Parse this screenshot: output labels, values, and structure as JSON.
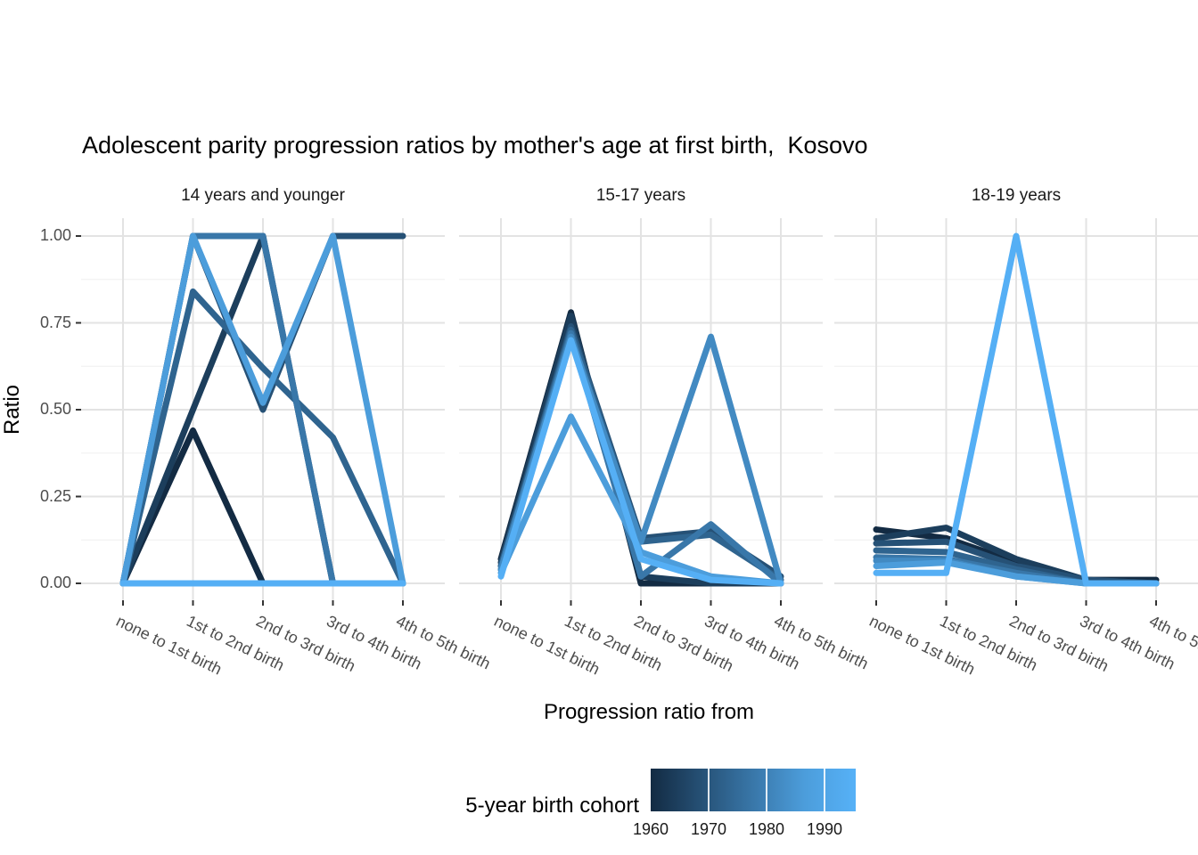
{
  "chart_data": {
    "type": "line",
    "title": "Adolescent parity progression ratios by mother's age at first birth,  Kosovo",
    "xlabel": "Progression ratio from",
    "ylabel": "Ratio",
    "ylim": [
      0,
      1
    ],
    "grid": "on",
    "y_ticks": [
      {
        "label": "0.00",
        "value": 0.0
      },
      {
        "label": "0.25",
        "value": 0.25
      },
      {
        "label": "0.50",
        "value": 0.5
      },
      {
        "label": "0.75",
        "value": 0.75
      },
      {
        "label": "1.00",
        "value": 1.0
      }
    ],
    "categories": [
      "none to 1st birth",
      "1st to 2nd birth",
      "2nd to 3rd birth",
      "3rd to 4th birth",
      "4th to 5th birth"
    ],
    "legend": {
      "title": "5-year birth cohort",
      "position": "bottom",
      "gradient_low": "#132B43",
      "gradient_high": "#56B1F7",
      "gradient_stops": [
        "#132B43",
        "#265176",
        "#3977A9",
        "#4C9DDB",
        "#56B1F7"
      ],
      "ticks": [
        {
          "label": "1960",
          "year": 1960
        },
        {
          "label": "1970",
          "year": 1970
        },
        {
          "label": "1980",
          "year": 1980
        },
        {
          "label": "1990",
          "year": 1990
        }
      ]
    },
    "facets": [
      {
        "label": "14 years and younger",
        "series": [
          {
            "cohort": 1960,
            "color": "#132B43",
            "values": [
              0,
              0.44,
              0,
              0,
              0
            ]
          },
          {
            "cohort": 1965,
            "color": "#1C3E5C",
            "values": [
              0,
              0.5,
              1.0,
              0,
              0
            ]
          },
          {
            "cohort": 1970,
            "color": "#265176",
            "values": [
              0,
              1.0,
              0.5,
              1.0,
              1.0
            ]
          },
          {
            "cohort": 1975,
            "color": "#2F648F",
            "values": [
              0,
              0.84,
              0.62,
              0.42,
              0
            ]
          },
          {
            "cohort": 1980,
            "color": "#3977A9",
            "values": [
              0,
              1.0,
              1.0,
              0,
              0
            ]
          },
          {
            "cohort": 1985,
            "color": "#428AC2",
            "values": [
              0,
              0,
              0,
              0,
              0
            ]
          },
          {
            "cohort": 1990,
            "color": "#4C9DDB",
            "values": [
              0,
              1.0,
              0.52,
              1.0,
              0
            ]
          },
          {
            "cohort": 1995,
            "color": "#55AFF5",
            "values": [
              0,
              0,
              0,
              0,
              0
            ]
          }
        ]
      },
      {
        "label": "15-17 years",
        "series": [
          {
            "cohort": 1960,
            "color": "#132B43",
            "values": [
              0.07,
              0.78,
              0,
              0,
              0
            ]
          },
          {
            "cohort": 1965,
            "color": "#1C3E5C",
            "values": [
              0.06,
              0.77,
              0.02,
              0,
              0
            ]
          },
          {
            "cohort": 1970,
            "color": "#265176",
            "values": [
              0.05,
              0.74,
              0.13,
              0.15,
              0.02
            ]
          },
          {
            "cohort": 1975,
            "color": "#2F648F",
            "values": [
              0.05,
              0.73,
              0.12,
              0.14,
              0.01
            ]
          },
          {
            "cohort": 1980,
            "color": "#3977A9",
            "values": [
              0.04,
              0.72,
              0.02,
              0.17,
              0
            ]
          },
          {
            "cohort": 1985,
            "color": "#428AC2",
            "values": [
              0.04,
              0.71,
              0.12,
              0.71,
              0
            ]
          },
          {
            "cohort": 1990,
            "color": "#4C9DDB",
            "values": [
              0.03,
              0.48,
              0.09,
              0.02,
              0
            ]
          },
          {
            "cohort": 1995,
            "color": "#55AFF5",
            "values": [
              0.02,
              0.7,
              0.07,
              0.01,
              0
            ]
          }
        ]
      },
      {
        "label": "18-19 years",
        "series": [
          {
            "cohort": 1960,
            "color": "#132B43",
            "values": [
              0.155,
              0.13,
              0.06,
              0.01,
              0.01
            ]
          },
          {
            "cohort": 1965,
            "color": "#1C3E5C",
            "values": [
              0.13,
              0.16,
              0.07,
              0.01,
              0
            ]
          },
          {
            "cohort": 1970,
            "color": "#265176",
            "values": [
              0.115,
              0.12,
              0.05,
              0.01,
              0
            ]
          },
          {
            "cohort": 1975,
            "color": "#2F648F",
            "values": [
              0.095,
              0.09,
              0.04,
              0,
              0
            ]
          },
          {
            "cohort": 1980,
            "color": "#3977A9",
            "values": [
              0.075,
              0.07,
              0.03,
              0,
              0
            ]
          },
          {
            "cohort": 1985,
            "color": "#428AC2",
            "values": [
              0.065,
              0.065,
              0.02,
              0,
              0
            ]
          },
          {
            "cohort": 1990,
            "color": "#4C9DDB",
            "values": [
              0.05,
              0.06,
              0.02,
              0,
              0
            ]
          },
          {
            "cohort": 1995,
            "color": "#55AFF5",
            "values": [
              0.03,
              0.03,
              1.0,
              0,
              0
            ]
          }
        ]
      }
    ]
  }
}
